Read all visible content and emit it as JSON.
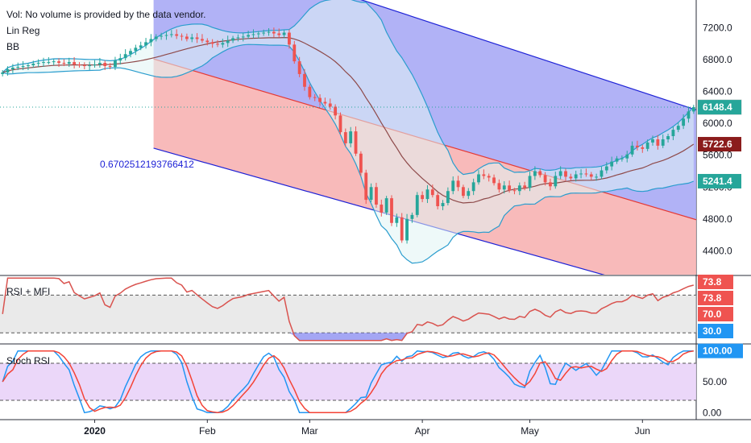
{
  "header": {
    "vol_note": "Vol: No volume is provided by the data vendor.",
    "linreg_label": "Lin Reg",
    "bb_label": "BB",
    "linreg_value": "0.6702512193766412"
  },
  "rsi_panel": {
    "title": "RSI + MFI"
  },
  "stoch_panel": {
    "title": "Stoch RSI"
  },
  "colors": {
    "up": "#26a69a",
    "down": "#ef5350",
    "bb_fill": "#e0f4f4",
    "bb_line": "#2a9dce",
    "basis": "#8e4a4a",
    "channel_upper_fill": "#a8aaf5",
    "channel_lower_fill": "#f7b2b2",
    "channel_line": "#1e22d6",
    "mid_line": "#e53935",
    "rsi_line": "#d9534f",
    "stoch_k": "#2196f3",
    "stoch_d": "#f44336",
    "stoch_fill": "#e9d3f8"
  },
  "chart_data": [
    {
      "type": "candlestick",
      "panel": "price",
      "ylim": [
        4100,
        7550
      ],
      "y_ticks": [
        7200,
        6800,
        6400,
        6000,
        5600,
        5200,
        4800,
        4400
      ],
      "y_tick_labels": [
        "7200.0",
        "6800.0",
        "6400.0",
        "6000.0",
        "5600.0",
        "5200.0",
        "4800.0",
        "4400.0"
      ],
      "x_ticks": [
        "2020",
        "Feb",
        "Mar",
        "Apr",
        "May",
        "Jun"
      ],
      "x_tick_index": [
        18,
        40,
        60,
        82,
        103,
        125
      ],
      "n_bars": 136,
      "close": [
        6640,
        6680,
        6700,
        6710,
        6720,
        6730,
        6750,
        6760,
        6770,
        6770,
        6780,
        6760,
        6750,
        6770,
        6740,
        6730,
        6720,
        6730,
        6740,
        6760,
        6720,
        6710,
        6790,
        6820,
        6870,
        6910,
        6950,
        6980,
        7020,
        7060,
        7090,
        7100,
        7110,
        7120,
        7100,
        7090,
        7060,
        7080,
        7060,
        7040,
        7020,
        7000,
        6990,
        7010,
        7040,
        7070,
        7080,
        7090,
        7110,
        7120,
        7130,
        7140,
        7150,
        7130,
        7110,
        7140,
        6990,
        6780,
        6620,
        6460,
        6330,
        6320,
        6270,
        6250,
        6210,
        6100,
        5890,
        5750,
        5900,
        5620,
        5380,
        5040,
        5200,
        4980,
        4880,
        5060,
        4750,
        4820,
        4530,
        4800,
        4850,
        5100,
        5050,
        5170,
        5100,
        4960,
        5000,
        5150,
        5280,
        5200,
        5090,
        5150,
        5260,
        5360,
        5340,
        5320,
        5250,
        5170,
        5220,
        5160,
        5150,
        5220,
        5190,
        5340,
        5400,
        5350,
        5260,
        5210,
        5340,
        5400,
        5330,
        5310,
        5360,
        5370,
        5360,
        5330,
        5330,
        5410,
        5460,
        5520,
        5560,
        5560,
        5610,
        5720,
        5700,
        5680,
        5760,
        5800,
        5720,
        5800,
        5840,
        5920,
        5970,
        6060,
        6150,
        6204
      ],
      "series": [
        {
          "name": "BB",
          "values": [],
          "note": ""
        }
      ],
      "overlays": {
        "channel_upper": {
          "x": [
            30,
            135
          ],
          "values": [
            8400,
            6180
          ]
        },
        "channel_mid": {
          "x": [
            30,
            135
          ],
          "values": [
            6800,
            4800
          ]
        },
        "channel_lower": {
          "x": [
            30,
            135
          ],
          "values": [
            5680,
            3780
          ]
        },
        "last_values": {
          "price": "6203.9",
          "bb_upper": "6148.4",
          "bb_basis": "5722.6",
          "bb_lower": "5241.4"
        }
      }
    },
    {
      "type": "line",
      "panel": "rsi",
      "name": "RSI + MFI",
      "ylim": [
        20,
        90
      ],
      "levels": [
        70,
        30
      ],
      "last_values": {
        "rsi": "73.8",
        "mfi": "73.8",
        "upper": "70.0",
        "lower": "30.0"
      }
    },
    {
      "type": "line",
      "panel": "stoch",
      "name": "Stoch RSI",
      "ylim": [
        -10,
        110
      ],
      "y_tick_labels": [
        "100.00",
        "50.00",
        "0.00"
      ],
      "y_ticks": [
        100,
        50,
        0
      ],
      "levels": [
        80,
        20
      ]
    }
  ]
}
